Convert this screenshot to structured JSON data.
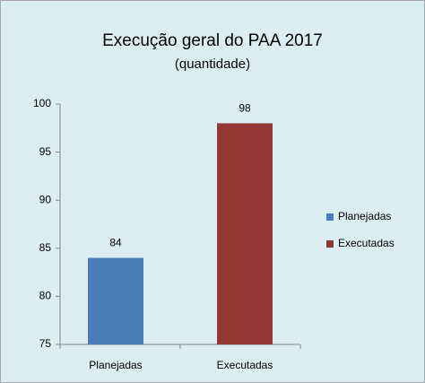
{
  "chart_data": {
    "type": "bar",
    "title": "Execução geral do PAA 2017",
    "subtitle": "(quantidade)",
    "categories": [
      "Planejadas",
      "Executadas"
    ],
    "values": [
      84,
      98
    ],
    "colors": [
      "#4a7ebb",
      "#953735"
    ],
    "ylim": [
      75,
      100
    ],
    "yticks": [
      75,
      80,
      85,
      90,
      95,
      100
    ],
    "grid": false,
    "legend": "right"
  }
}
